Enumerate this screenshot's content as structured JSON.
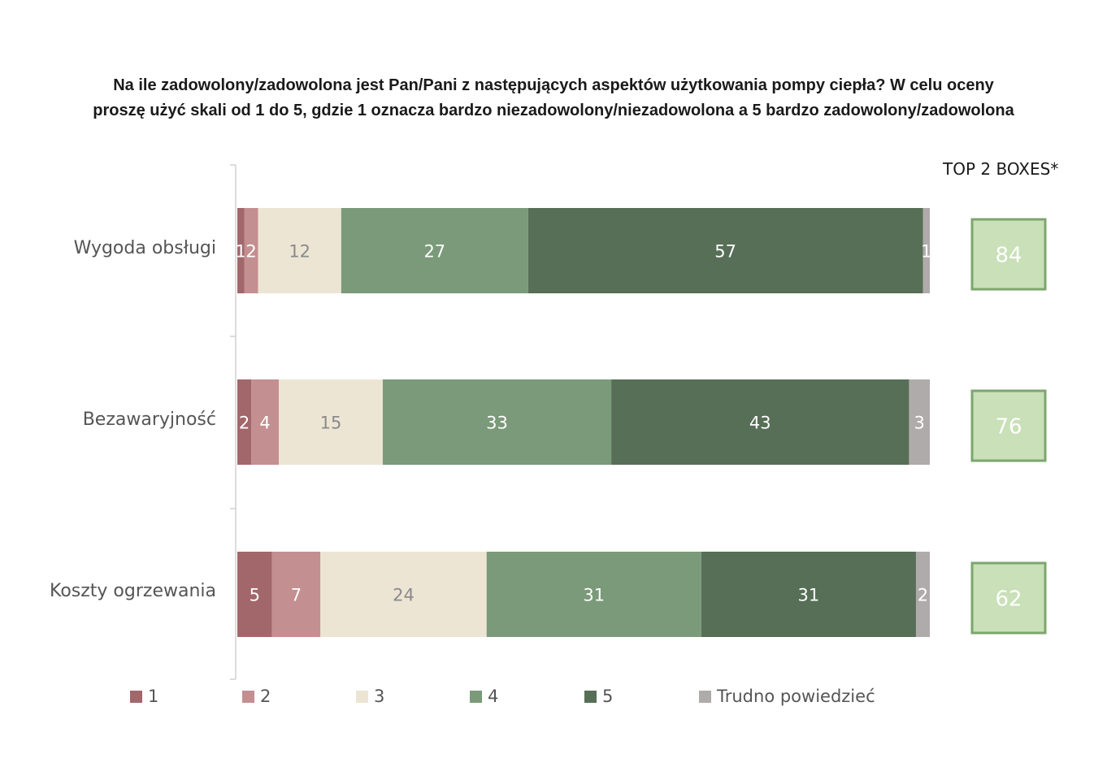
{
  "title_line1": "Na ile zadowolony/zadowolona jest Pan/Pani z następujących aspektów użytkowania pompy ciepła? W celu oceny",
  "title_line2": "proszę użyć skali od 1 do 5, gdzie 1 oznacza bardzo niezadowolony/niezadowolona a 5 bardzo zadowolony/zadowolona",
  "top2_header": "TOP 2 BOXES*",
  "colors": {
    "s1": "#a2676a",
    "s2": "#c48f91",
    "s3": "#ece5d4",
    "s4": "#7a9a7a",
    "s5": "#566f56",
    "trudno": "#b0abab",
    "top2_fill": "#c9e0b8",
    "top2_border": "#7da66e"
  },
  "chart_data": {
    "type": "bar",
    "orientation": "horizontal",
    "stacked": true,
    "title": "Na ile zadowolony/zadowolona jest Pan/Pani z następujących aspektów użytkowania pompy ciepła? W celu oceny proszę użyć skali od 1 do 5, gdzie 1 oznacza bardzo niezadowolony/niezadowolona a 5 bardzo zadowolony/zadowolona",
    "categories": [
      "Wygoda obsługi",
      "Bezawaryjność",
      "Koszty ogrzewania"
    ],
    "series": [
      {
        "name": "1",
        "color": "#a2676a",
        "values": [
          1,
          2,
          5
        ],
        "labels": [
          "1",
          "2",
          "5"
        ]
      },
      {
        "name": "2",
        "color": "#c48f91",
        "values": [
          2,
          4,
          7
        ],
        "labels": [
          "2",
          "4",
          "7"
        ]
      },
      {
        "name": "3",
        "color": "#ece5d4",
        "values": [
          12,
          15,
          24
        ],
        "labels": [
          "12",
          "15",
          "24"
        ]
      },
      {
        "name": "4",
        "color": "#7a9a7a",
        "values": [
          27,
          33,
          31
        ],
        "labels": [
          "27",
          "33",
          "31"
        ]
      },
      {
        "name": "5",
        "color": "#566f56",
        "values": [
          57,
          43,
          31
        ],
        "labels": [
          "57",
          "43",
          "31"
        ]
      },
      {
        "name": "Trudno powiedzieć",
        "color": "#b0abab",
        "values": [
          1,
          3,
          2
        ],
        "labels": [
          "1",
          "3",
          "2"
        ]
      }
    ],
    "top2_boxes": [
      84,
      76,
      62
    ],
    "legend_position": "bottom",
    "grid": false
  }
}
